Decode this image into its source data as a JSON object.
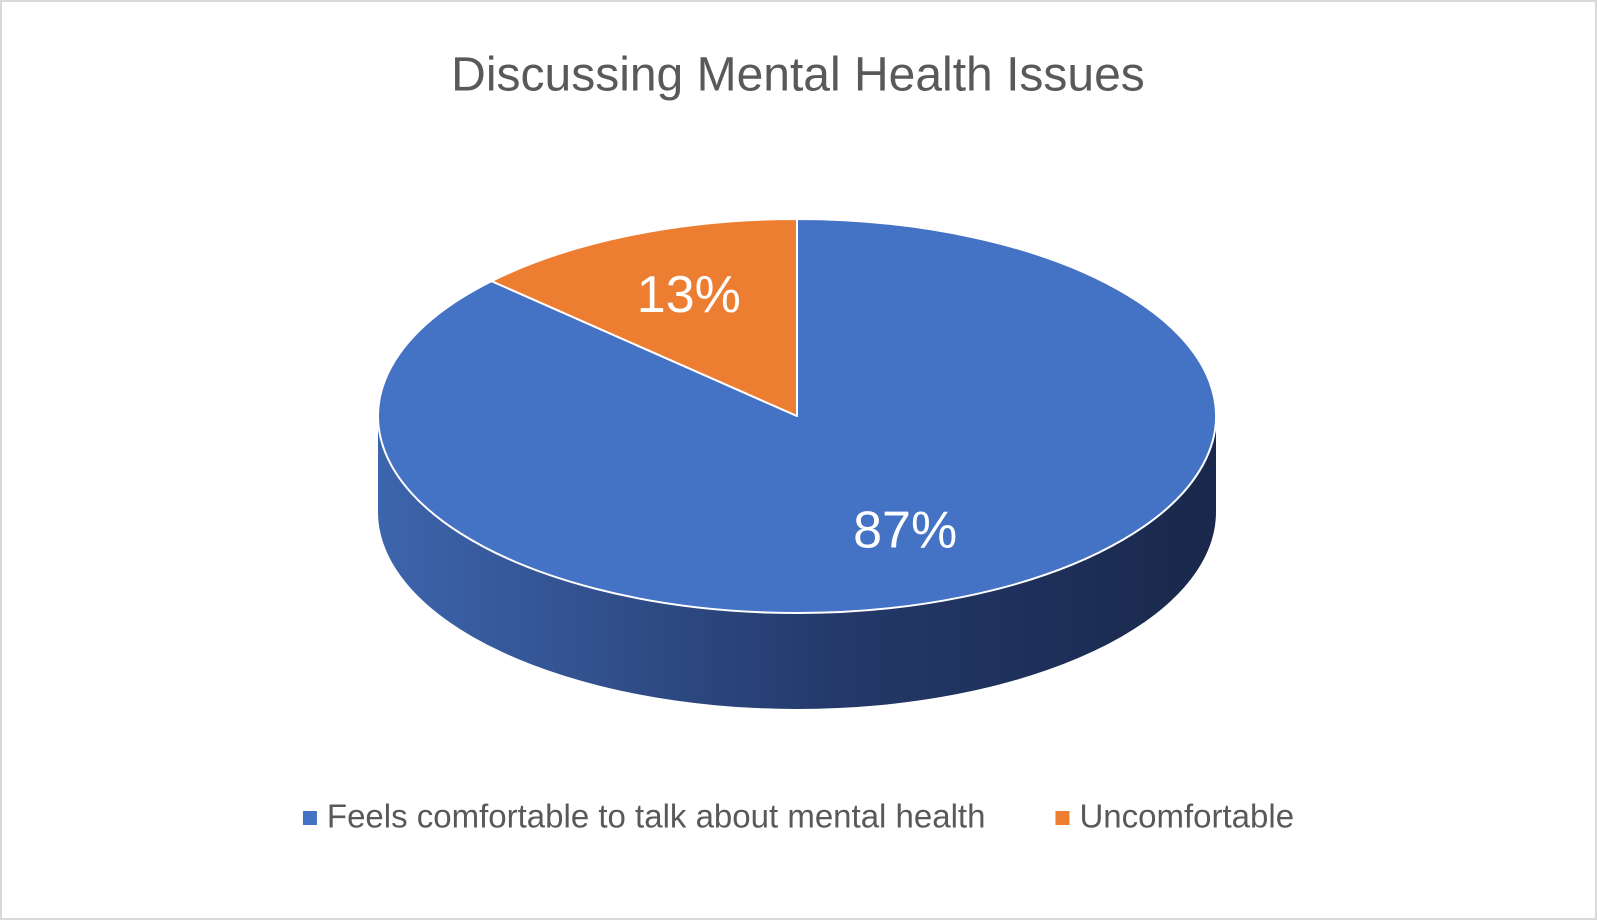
{
  "chart_data": {
    "type": "pie",
    "title": "Discussing Mental Health Issues",
    "categories": [
      "Feels comfortable to talk about mental health",
      "Uncomfortable"
    ],
    "values": [
      87,
      13
    ],
    "value_labels": [
      "87%",
      "13%"
    ],
    "colors": [
      "#4472c4",
      "#ed7d31"
    ],
    "legend": "bottom"
  }
}
